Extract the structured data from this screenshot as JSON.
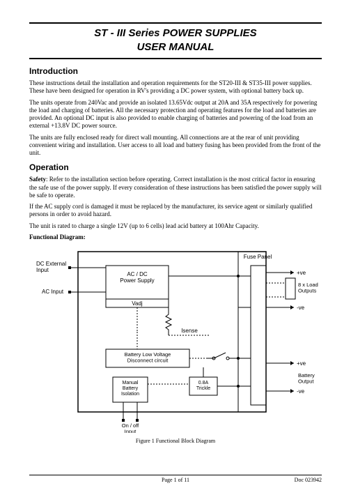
{
  "title": {
    "line1": "ST - III Series POWER SUPPLIES",
    "line2": "USER MANUAL"
  },
  "sections": {
    "intro_heading": "Introduction",
    "intro_p1": "These instructions detail the installation and operation requirements for the ST20-III & ST35-III power supplies. These have been designed for operation in RV's providing a DC power system, with optional battery back up.",
    "intro_p2": "The units operate from 240Vac and provide an isolated 13.65Vdc output at 20A and 35A respectively for powering the load and charging of batteries. All the necessary protection and operating features for the load and batteries are provided. An optional DC input is also provided to enable charging of batteries and powering of the load from an external +13.8V DC power source.",
    "intro_p3": "The units are fully enclosed ready for direct wall mounting. All connections are at the rear of unit providing convenient wiring and installation. User access to all load and battery fusing has been provided from the front of the unit.",
    "op_heading": "Operation",
    "op_p1a": "Safety",
    "op_p1b": ": Refer to the installation section before operating. Correct installation is the most critical factor in ensuring the safe use of the power supply. If every consideration of these instructions has been satisfied the power supply will be safe to operate.",
    "op_p2": "If the AC supply cord is damaged it must be replaced by the manufacturer, its service agent or similarly qualified persons in order to avoid hazard.",
    "op_p3": "The unit is rated to charge a single 12V (up to 6 cells) lead acid battery at 100Ahr Capacity.",
    "func_diag_label": "Functional Diagram:"
  },
  "diagram": {
    "outer_color": "#000000",
    "bg": "#ffffff",
    "labels": {
      "dc_ext": "DC External\nInput",
      "ac_in": "AC Input",
      "acdc": "AC / DC\nPower Supply",
      "vadj": "Vadj",
      "isense": "Isense",
      "blv": "Battery Low Voltage\nDisconnect circuit",
      "manual": "Manual\nBattery\nIsolation",
      "trickle": "0.8A\nTrickle",
      "onoff": "On / off\nInput",
      "fuse": "Fuse Panel",
      "load_out": "8 x Load\nOutputs",
      "batt_out": "Battery\nOutput",
      "pve": "+ve",
      "nve": "-ve"
    },
    "caption": "Figure 1 Functional Block Diagram"
  },
  "footer": {
    "page": "Page 1 of 11",
    "doc": "Doc 023942"
  }
}
